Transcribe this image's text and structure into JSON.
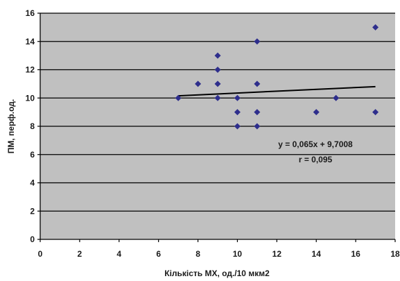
{
  "chart_data": {
    "type": "scatter",
    "title": "",
    "xlabel": "Кількість МХ, од./10 мкм2",
    "ylabel": "ПМ, перф.од.",
    "xlim": [
      0,
      18
    ],
    "ylim": [
      0,
      16
    ],
    "x_ticks": [
      0,
      2,
      4,
      6,
      8,
      10,
      12,
      14,
      16,
      18
    ],
    "y_ticks": [
      0,
      2,
      4,
      6,
      8,
      10,
      12,
      14,
      16
    ],
    "grid": "horizontal",
    "series": [
      {
        "points": [
          {
            "x": 7,
            "y": 10
          },
          {
            "x": 8,
            "y": 11
          },
          {
            "x": 9,
            "y": 13
          },
          {
            "x": 9,
            "y": 12
          },
          {
            "x": 9,
            "y": 11
          },
          {
            "x": 9,
            "y": 10
          },
          {
            "x": 10,
            "y": 10
          },
          {
            "x": 10,
            "y": 9
          },
          {
            "x": 10,
            "y": 8
          },
          {
            "x": 11,
            "y": 14
          },
          {
            "x": 11,
            "y": 11
          },
          {
            "x": 11,
            "y": 9
          },
          {
            "x": 11,
            "y": 8
          },
          {
            "x": 14,
            "y": 9
          },
          {
            "x": 15,
            "y": 10
          },
          {
            "x": 17,
            "y": 15
          },
          {
            "x": 17,
            "y": 9
          }
        ]
      }
    ],
    "trendline": {
      "slope": 0.065,
      "intercept": 9.7008,
      "x_range": [
        7,
        17
      ]
    },
    "annotations": [
      "y = 0,065x + 9,7008",
      "r = 0,095"
    ],
    "colors": {
      "plot_background": "#c0c0c0",
      "marker": "#2e2e8c",
      "gridline": "#000000",
      "trendline": "#000000"
    }
  }
}
